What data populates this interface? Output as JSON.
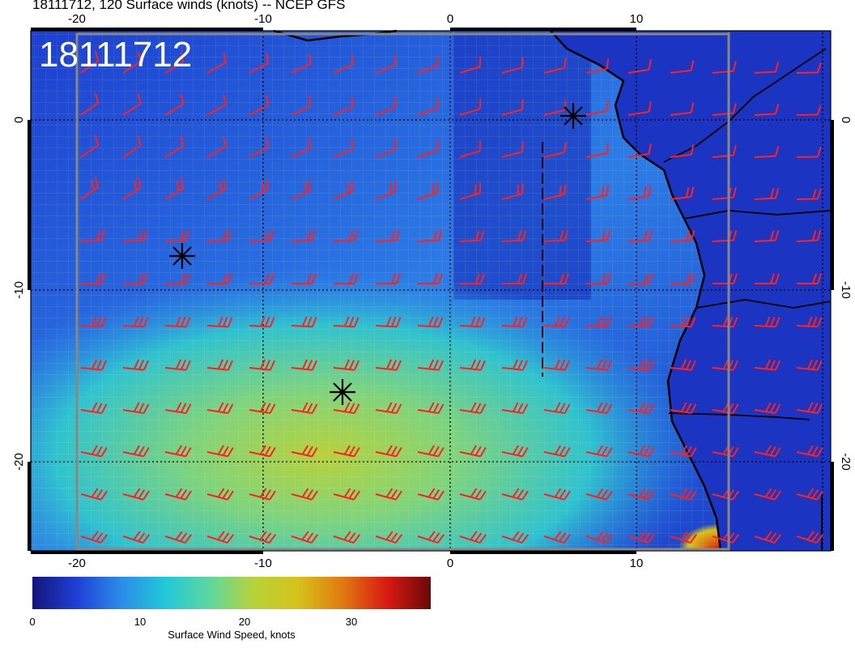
{
  "title": "18111712, 120 Surface winds (knots) -- NCEP GFS",
  "map": {
    "timestamp_label": "18111712",
    "x_ticks": [
      "-20",
      "-10",
      "0",
      "10"
    ],
    "y_ticks": [
      "0",
      "-10",
      "-20"
    ],
    "storm_markers": [
      "asterisk-marker",
      "asterisk-marker",
      "asterisk-marker"
    ],
    "barb_color": "#ff2020",
    "coast_color": "#000000"
  },
  "colorbar": {
    "label": "Surface Wind Speed, knots",
    "ticks": [
      "0",
      "10",
      "20",
      "30"
    ],
    "tick_values": [
      0,
      10,
      20,
      30
    ],
    "range": [
      0,
      37
    ],
    "colors": [
      "#14147a",
      "#1f3fd6",
      "#2c8be8",
      "#21c8d8",
      "#5ed7a0",
      "#b8d23a",
      "#d6c21b",
      "#e07a12",
      "#d81a12",
      "#6a0808"
    ]
  }
}
